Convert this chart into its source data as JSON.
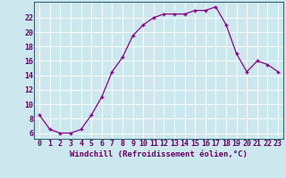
{
  "x": [
    0,
    1,
    2,
    3,
    4,
    5,
    6,
    7,
    8,
    9,
    10,
    11,
    12,
    13,
    14,
    15,
    16,
    17,
    18,
    19,
    20,
    21,
    22,
    23
  ],
  "y": [
    8.5,
    6.5,
    6.0,
    6.0,
    6.5,
    8.5,
    11.0,
    14.5,
    16.5,
    19.5,
    21.0,
    22.0,
    22.5,
    22.5,
    22.5,
    23.0,
    23.0,
    23.5,
    21.0,
    17.0,
    14.5,
    16.0,
    15.5,
    14.5
  ],
  "line_color": "#880088",
  "marker": "+",
  "bg_color": "#cce8ee",
  "grid_color": "#b0d8e0",
  "xlabel": "Windchill (Refroidissement éolien,°C)",
  "ylabel_ticks": [
    6,
    8,
    10,
    12,
    14,
    16,
    18,
    20,
    22
  ],
  "xlim": [
    -0.5,
    23.5
  ],
  "ylim": [
    5.2,
    24.2
  ],
  "xtick_labels": [
    "0",
    "1",
    "2",
    "3",
    "4",
    "5",
    "6",
    "7",
    "8",
    "9",
    "10",
    "11",
    "12",
    "13",
    "14",
    "15",
    "16",
    "17",
    "18",
    "19",
    "20",
    "21",
    "22",
    "23"
  ],
  "xlabel_fontsize": 6.5,
  "tick_fontsize": 6.0
}
